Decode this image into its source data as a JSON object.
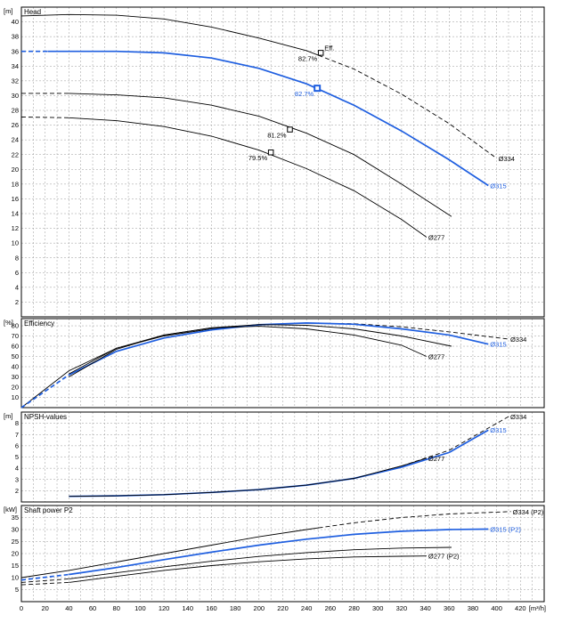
{
  "colors": {
    "highlight": "#1f5fe0",
    "curve": "#000000",
    "grid": "#9a9a9a"
  },
  "chart_data": [
    {
      "type": "line",
      "title": "Head",
      "unit": "[m]",
      "xlim": [
        0,
        440
      ],
      "ylim": [
        0,
        42
      ],
      "yticks": [
        2,
        4,
        6,
        8,
        10,
        12,
        14,
        16,
        18,
        20,
        22,
        24,
        26,
        28,
        30,
        32,
        34,
        36,
        38,
        40
      ],
      "grid": true,
      "series": [
        {
          "name": "Ø334",
          "highlight": false,
          "label_at": [
            400,
            21.5
          ],
          "points": [
            [
              0,
              40.8
            ],
            [
              40,
              41.0
            ],
            [
              80,
              40.9
            ],
            [
              120,
              40.4
            ],
            [
              160,
              39.3
            ],
            [
              200,
              37.8
            ],
            [
              240,
              36.1
            ],
            [
              280,
              33.6
            ],
            [
              320,
              30.2
            ],
            [
              360,
              26.2
            ],
            [
              400,
              21.5
            ]
          ],
          "solid_until": 250
        },
        {
          "name": "Ø315",
          "highlight": true,
          "label_at": [
            393,
            17.8
          ],
          "points": [
            [
              0,
              36.0
            ],
            [
              40,
              36.0
            ],
            [
              80,
              36.0
            ],
            [
              120,
              35.8
            ],
            [
              160,
              35.1
            ],
            [
              200,
              33.7
            ],
            [
              240,
              31.6
            ],
            [
              280,
              28.7
            ],
            [
              320,
              25.2
            ],
            [
              360,
              21.3
            ],
            [
              393,
              17.8
            ]
          ],
          "solid_from": 22
        },
        {
          "name": "",
          "highlight": false,
          "label_at": null,
          "points": [
            [
              0,
              30.3
            ],
            [
              40,
              30.3
            ],
            [
              80,
              30.1
            ],
            [
              120,
              29.7
            ],
            [
              160,
              28.7
            ],
            [
              200,
              27.2
            ],
            [
              240,
              24.9
            ],
            [
              280,
              22.0
            ],
            [
              320,
              18.0
            ],
            [
              362,
              13.6
            ]
          ],
          "solid_from": 40
        },
        {
          "name": "Ø277",
          "highlight": false,
          "label_at": [
            341,
            10.8
          ],
          "points": [
            [
              0,
              27.1
            ],
            [
              40,
              27.0
            ],
            [
              80,
              26.6
            ],
            [
              120,
              25.8
            ],
            [
              160,
              24.5
            ],
            [
              200,
              22.6
            ],
            [
              240,
              20.1
            ],
            [
              280,
              17.1
            ],
            [
              320,
              13.2
            ],
            [
              341,
              10.8
            ]
          ],
          "solid_from": 40
        }
      ],
      "markers": [
        {
          "x": 252,
          "y": 35.8,
          "label": "82.7%",
          "highlight": false
        },
        {
          "x": 249,
          "y": 31.0,
          "label": "82.7%",
          "highlight": true
        },
        {
          "x": 226,
          "y": 25.4,
          "label": "81.2%",
          "highlight": false
        },
        {
          "x": 210,
          "y": 22.3,
          "label": "79.5%",
          "highlight": false
        }
      ],
      "annotation": "Eff."
    },
    {
      "type": "line",
      "title": "Efficiency",
      "unit": "[%]",
      "xlim": [
        0,
        440
      ],
      "ylim": [
        0,
        87
      ],
      "yticks": [
        10,
        20,
        30,
        40,
        50,
        60,
        70,
        80
      ],
      "grid": true,
      "series": [
        {
          "name": "Ø334",
          "highlight": false,
          "label_at": [
            410,
            67
          ],
          "points": [
            [
              0,
              0
            ],
            [
              40,
              36
            ],
            [
              80,
              58
            ],
            [
              120,
              70
            ],
            [
              160,
              77
            ],
            [
              200,
              81
            ],
            [
              240,
              82.6
            ],
            [
              280,
              82
            ],
            [
              320,
              79
            ],
            [
              360,
              74
            ],
            [
              410,
              67
            ]
          ],
          "solid_until": 250
        },
        {
          "name": "Ø315",
          "highlight": true,
          "label_at": [
            393,
            62
          ],
          "points": [
            [
              0,
              0
            ],
            [
              40,
              32
            ],
            [
              80,
              55
            ],
            [
              120,
              68
            ],
            [
              160,
              76
            ],
            [
              200,
              81
            ],
            [
              240,
              82.7
            ],
            [
              280,
              81.5
            ],
            [
              320,
              77
            ],
            [
              360,
              71
            ],
            [
              393,
              62
            ]
          ],
          "solid_from": 40
        },
        {
          "name": "",
          "highlight": false,
          "label_at": null,
          "points": [
            [
              40,
              33
            ],
            [
              80,
              58
            ],
            [
              120,
              71
            ],
            [
              160,
              78
            ],
            [
              200,
              81.2
            ],
            [
              240,
              80.5
            ],
            [
              280,
              77
            ],
            [
              320,
              70
            ],
            [
              362,
              60
            ]
          ],
          "solid_from": 40
        },
        {
          "name": "Ø277",
          "highlight": false,
          "label_at": [
            341,
            50
          ],
          "points": [
            [
              40,
              30
            ],
            [
              80,
              57
            ],
            [
              120,
              71
            ],
            [
              160,
              78
            ],
            [
              200,
              79.5
            ],
            [
              240,
              77
            ],
            [
              280,
              71
            ],
            [
              320,
              61
            ],
            [
              341,
              50
            ]
          ],
          "solid_from": 40
        }
      ]
    },
    {
      "type": "line",
      "title": "NPSH-values",
      "unit": "[m]",
      "xlim": [
        0,
        440
      ],
      "ylim": [
        1,
        9
      ],
      "yticks": [
        2,
        3,
        4,
        5,
        6,
        7,
        8
      ],
      "grid": true,
      "series": [
        {
          "name": "Ø334",
          "highlight": false,
          "label_at": [
            410,
            8.6
          ],
          "points": [
            [
              40,
              1.5
            ],
            [
              80,
              1.55
            ],
            [
              120,
              1.65
            ],
            [
              160,
              1.85
            ],
            [
              200,
              2.1
            ],
            [
              240,
              2.5
            ],
            [
              280,
              3.1
            ],
            [
              320,
              4.2
            ],
            [
              360,
              5.6
            ],
            [
              410,
              8.6
            ]
          ],
          "solid_until": 320
        },
        {
          "name": "Ø315",
          "highlight": true,
          "label_at": [
            393,
            7.4
          ],
          "points": [
            [
              40,
              1.5
            ],
            [
              80,
              1.55
            ],
            [
              120,
              1.65
            ],
            [
              160,
              1.85
            ],
            [
              200,
              2.1
            ],
            [
              240,
              2.5
            ],
            [
              280,
              3.1
            ],
            [
              320,
              4.1
            ],
            [
              360,
              5.4
            ],
            [
              393,
              7.4
            ]
          ],
          "solid_from": 40
        },
        {
          "name": "Ø277",
          "highlight": false,
          "label_at": [
            341,
            4.9
          ],
          "points": [
            [
              40,
              1.5
            ],
            [
              80,
              1.55
            ],
            [
              120,
              1.65
            ],
            [
              160,
              1.85
            ],
            [
              200,
              2.1
            ],
            [
              240,
              2.5
            ],
            [
              280,
              3.1
            ],
            [
              320,
              4.2
            ],
            [
              341,
              4.9
            ]
          ],
          "solid_from": 40
        }
      ]
    },
    {
      "type": "line",
      "title": "Shaft power P2",
      "unit": "[kW]",
      "xlim": [
        0,
        440
      ],
      "ylim": [
        0,
        40
      ],
      "yticks": [
        5,
        10,
        15,
        20,
        25,
        30,
        35
      ],
      "grid": true,
      "series": [
        {
          "name": "Ø334 (P2)",
          "highlight": false,
          "label_at": [
            412,
            37.5
          ],
          "points": [
            [
              0,
              10
            ],
            [
              40,
              13
            ],
            [
              80,
              16.5
            ],
            [
              120,
              20
            ],
            [
              160,
              23.5
            ],
            [
              200,
              27
            ],
            [
              240,
              30
            ],
            [
              280,
              32.8
            ],
            [
              320,
              35
            ],
            [
              360,
              36.5
            ],
            [
              412,
              37.5
            ]
          ],
          "solid_until": 250
        },
        {
          "name": "Ø315 (P2)",
          "highlight": true,
          "label_at": [
            393,
            30.2
          ],
          "points": [
            [
              0,
              9
            ],
            [
              40,
              11.3
            ],
            [
              80,
              14.2
            ],
            [
              120,
              17.5
            ],
            [
              160,
              20.6
            ],
            [
              200,
              23.5
            ],
            [
              240,
              26
            ],
            [
              280,
              28
            ],
            [
              320,
              29.3
            ],
            [
              360,
              30
            ],
            [
              393,
              30.2
            ]
          ],
          "solid_from": 40
        },
        {
          "name": "",
          "highlight": false,
          "label_at": null,
          "points": [
            [
              0,
              8
            ],
            [
              40,
              9.5
            ],
            [
              80,
              12
            ],
            [
              120,
              14.5
            ],
            [
              160,
              16.8
            ],
            [
              200,
              18.8
            ],
            [
              240,
              20.4
            ],
            [
              280,
              21.6
            ],
            [
              320,
              22.3
            ],
            [
              362,
              22.6
            ]
          ],
          "solid_from": 40
        },
        {
          "name": "Ø277 (P2)",
          "highlight": false,
          "label_at": [
            341,
            19
          ],
          "points": [
            [
              0,
              7
            ],
            [
              40,
              8
            ],
            [
              80,
              10.5
            ],
            [
              120,
              13
            ],
            [
              160,
              15
            ],
            [
              200,
              16.6
            ],
            [
              240,
              17.8
            ],
            [
              280,
              18.6
            ],
            [
              320,
              18.9
            ],
            [
              341,
              19
            ]
          ],
          "solid_from": 40
        }
      ]
    }
  ],
  "x_axis": {
    "unit": "[m³/h]",
    "ticks": [
      "0",
      "20",
      "40",
      "60",
      "80",
      "100",
      "120",
      "140",
      "160",
      "180",
      "200",
      "220",
      "240",
      "260",
      "280",
      "300",
      "320",
      "340",
      "360",
      "380",
      "400",
      "420"
    ]
  }
}
